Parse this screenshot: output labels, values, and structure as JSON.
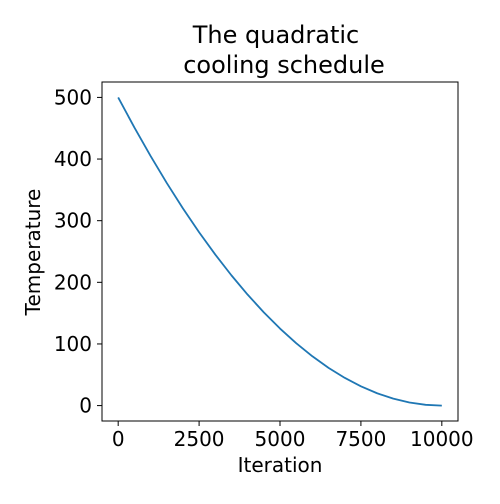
{
  "chart_data": {
    "type": "line",
    "title": [
      "The quadratic",
      "cooling schedule"
    ],
    "xlabel": "Iteration",
    "ylabel": "Temperature",
    "xlim": [
      -500,
      10500
    ],
    "ylim": [
      -25,
      525
    ],
    "x_ticks": [
      0,
      2500,
      5000,
      7500,
      10000
    ],
    "x_tick_labels": [
      "0",
      "2500",
      "5000",
      "7500",
      "10000"
    ],
    "y_ticks": [
      0,
      100,
      200,
      300,
      400,
      500
    ],
    "y_tick_labels": [
      "0",
      "100",
      "200",
      "300",
      "400",
      "500"
    ],
    "grid": false,
    "legend": "none",
    "series": [
      {
        "color": "#1f77b4",
        "x": [
          0,
          500,
          1000,
          1500,
          2000,
          2500,
          3000,
          3500,
          4000,
          4500,
          5000,
          5500,
          6000,
          6500,
          7000,
          7500,
          8000,
          8500,
          9000,
          9500,
          10000
        ],
        "y": [
          500,
          451.25,
          405,
          361.25,
          320,
          281.25,
          245,
          211.25,
          180,
          151.25,
          125,
          101.25,
          80,
          61.25,
          45,
          31.25,
          20,
          11.25,
          5,
          1.25,
          0
        ]
      }
    ]
  }
}
